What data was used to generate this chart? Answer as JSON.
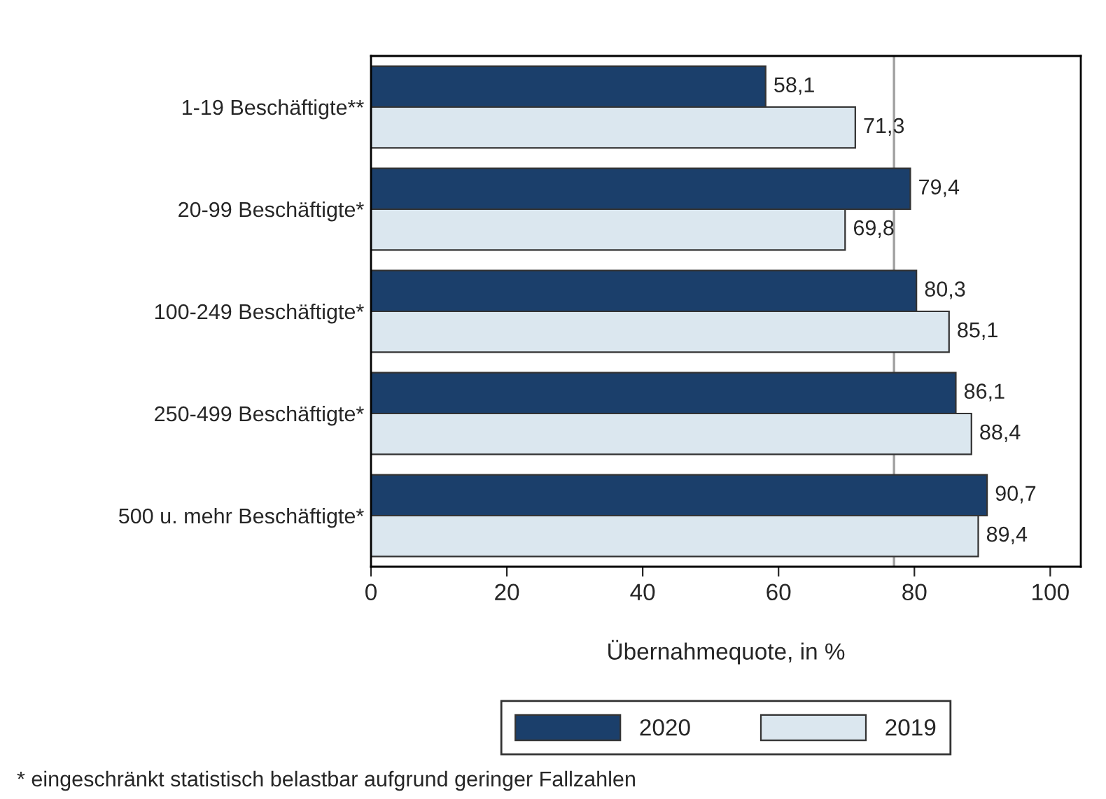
{
  "chart_data": {
    "type": "bar",
    "orientation": "horizontal",
    "xlabel": "Übernahmequote, in %",
    "categories": [
      "1-19 Beschäftigte**",
      "20-99 Beschäftigte*",
      "100-249 Beschäftigte*",
      "250-499 Beschäftigte*",
      "500 u. mehr Beschäftigte*"
    ],
    "series": [
      {
        "name": "2020",
        "color": "#1b3f6b",
        "values": [
          58.1,
          79.4,
          80.3,
          86.1,
          90.7
        ],
        "value_labels": [
          "58,1",
          "79,4",
          "80,3",
          "86,1",
          "90,7"
        ]
      },
      {
        "name": "2019",
        "color": "#dbe7ef",
        "values": [
          71.3,
          69.8,
          85.1,
          88.4,
          89.4
        ],
        "value_labels": [
          "71,3",
          "69,8",
          "85,1",
          "88,4",
          "89,4"
        ]
      }
    ],
    "xlim": [
      0,
      104.5
    ],
    "xticks": [
      0,
      20,
      40,
      60,
      80,
      100
    ],
    "ref_lines": [
      {
        "axis": "x",
        "value": 77,
        "color": "#a0a0a0"
      }
    ],
    "grid": false,
    "legend": "bottom",
    "annotations": [
      "* eingeschränkt statistisch belastbar aufgrund geringer Fallzahlen"
    ]
  }
}
